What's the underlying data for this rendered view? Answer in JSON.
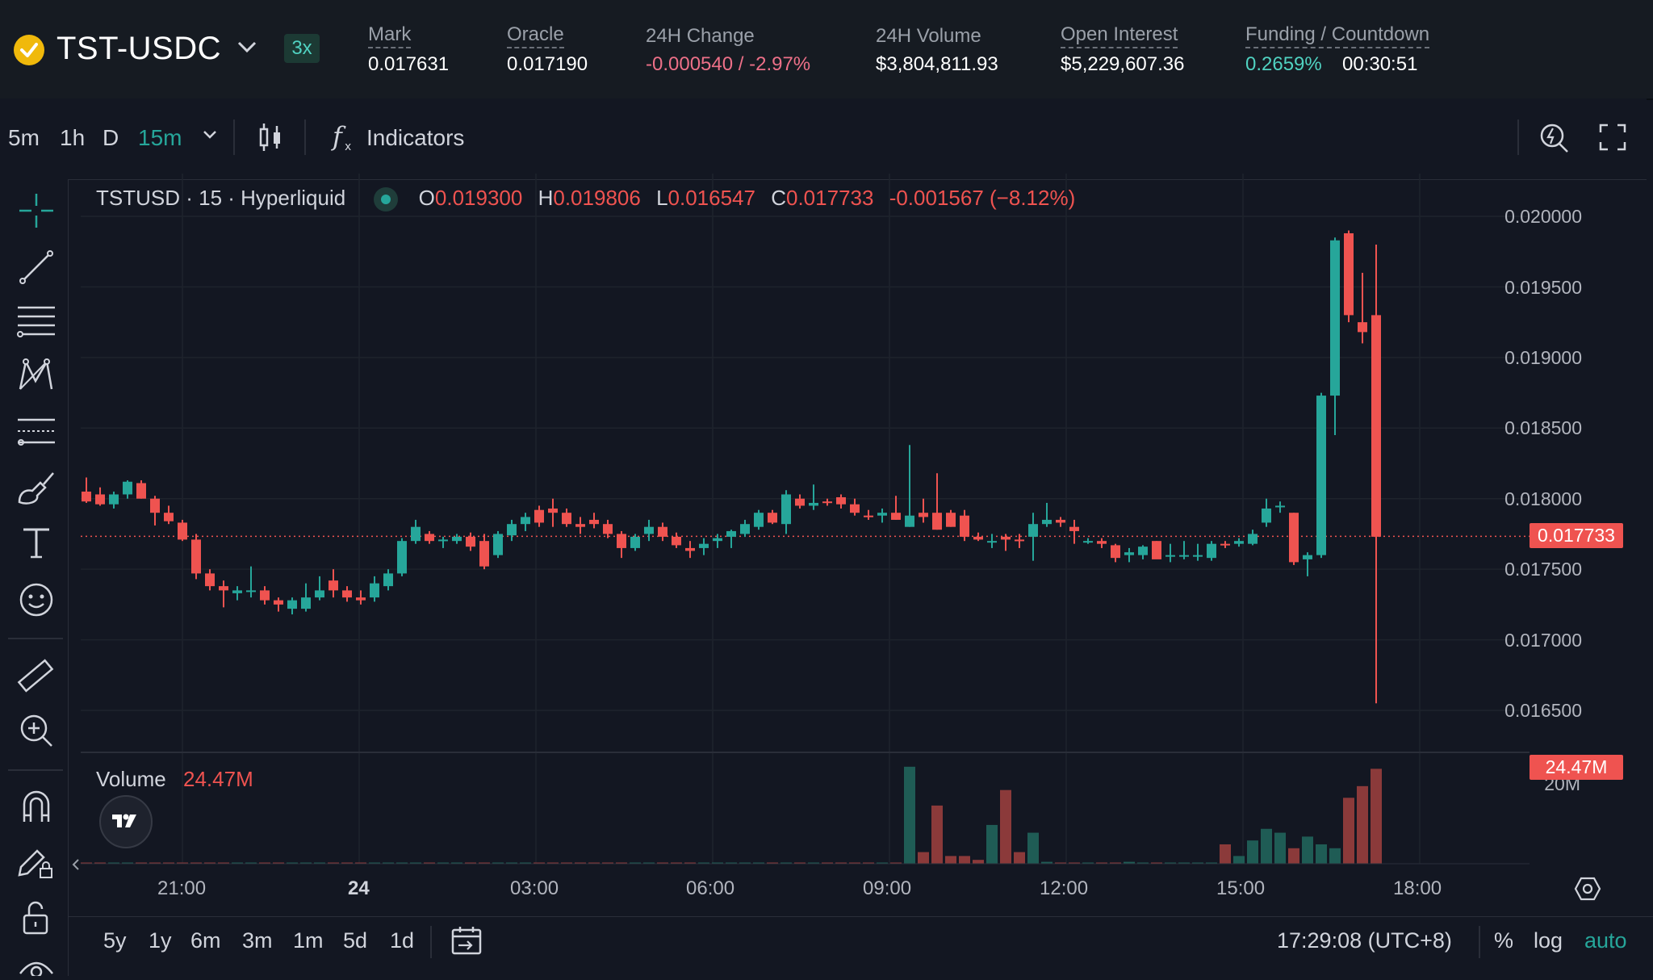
{
  "header": {
    "symbol": "TST-USDC",
    "leverage": "3x",
    "stats": {
      "mark": {
        "label": "Mark",
        "value": "0.017631"
      },
      "oracle": {
        "label": "Oracle",
        "value": "0.017190"
      },
      "change": {
        "label": "24H Change",
        "value": "-0.000540 / -2.97%"
      },
      "volume": {
        "label": "24H Volume",
        "value": "$3,804,811.93"
      },
      "open_interest": {
        "label": "Open Interest",
        "value": "$5,229,607.36"
      },
      "funding": {
        "label": "Funding / Countdown",
        "rate": "0.2659%",
        "countdown": "00:30:51"
      }
    }
  },
  "toolbar": {
    "timeframes": [
      "5m",
      "1h",
      "D"
    ],
    "active_timeframe": "15m",
    "indicators_label": "Indicators"
  },
  "legend": {
    "title": "TSTUSD · 15 · Hyperliquid",
    "o_label": "O",
    "o": "0.019300",
    "h_label": "H",
    "h": "0.019806",
    "l_label": "L",
    "l": "0.016547",
    "c_label": "C",
    "c": "0.017733",
    "change": "-0.001567 (−8.12%)"
  },
  "volume_legend": {
    "label": "Volume",
    "value": "24.47M"
  },
  "price_axis": [
    "0.020000",
    "0.019500",
    "0.019000",
    "0.018500",
    "0.018000",
    "0.017500",
    "0.017000",
    "0.016500"
  ],
  "volume_axis": [
    "20M"
  ],
  "last_price_tag": "0.017733",
  "volume_tag": "24.47M",
  "time_axis": [
    "21:00",
    "24",
    "03:00",
    "06:00",
    "09:00",
    "12:00",
    "15:00",
    "18:00"
  ],
  "bottom": {
    "ranges": [
      "5y",
      "1y",
      "6m",
      "3m",
      "1m",
      "5d",
      "1d"
    ],
    "clock": "17:29:08 (UTC+8)",
    "percent": "%",
    "log": "log",
    "auto": "auto"
  },
  "colors": {
    "up": "#26a69a",
    "down": "#ef5350",
    "background": "#131722",
    "accent": "#50d2c1"
  },
  "icons": {
    "rail": [
      "crosshair-icon",
      "trend-line-icon",
      "fib-lines-icon",
      "pattern-icon",
      "prediction-icon",
      "brush-icon",
      "text-icon",
      "emoji-icon",
      "ruler-icon",
      "zoom-in-icon",
      "magnet-icon",
      "lock-drawing-icon",
      "unlock-icon"
    ],
    "toolbar": [
      "candle-type-icon",
      "indicators-icon",
      "snapshot-icon",
      "fullscreen-icon"
    ]
  },
  "chart_data": {
    "type": "candlestick",
    "title": "TSTUSD · 15 · Hyperliquid",
    "x_ticks": [
      "21:00",
      "24",
      "03:00",
      "06:00",
      "09:00",
      "12:00",
      "15:00",
      "18:00"
    ],
    "ylim": [
      0.0163,
      0.0202
    ],
    "y_ticks": [
      0.0165,
      0.017,
      0.0175,
      0.018,
      0.0185,
      0.019,
      0.0195,
      0.02
    ],
    "last_price": 0.017733,
    "grid": true,
    "candles": [
      [
        0.01805,
        0.01815,
        0.01797,
        0.01798
      ],
      [
        0.01803,
        0.01808,
        0.01795,
        0.01796
      ],
      [
        0.01796,
        0.01805,
        0.01793,
        0.01803
      ],
      [
        0.01803,
        0.01813,
        0.018,
        0.01812
      ],
      [
        0.01811,
        0.01813,
        0.018,
        0.018
      ],
      [
        0.018,
        0.01802,
        0.01781,
        0.0179
      ],
      [
        0.0179,
        0.01795,
        0.01782,
        0.01784
      ],
      [
        0.01783,
        0.01785,
        0.0177,
        0.01771
      ],
      [
        0.01771,
        0.01775,
        0.01743,
        0.01747
      ],
      [
        0.01747,
        0.0175,
        0.01735,
        0.01738
      ],
      [
        0.01738,
        0.01742,
        0.01723,
        0.01735
      ],
      [
        0.01733,
        0.01738,
        0.01728,
        0.01735
      ],
      [
        0.01735,
        0.01752,
        0.0173,
        0.01735
      ],
      [
        0.01735,
        0.01738,
        0.01725,
        0.01728
      ],
      [
        0.01728,
        0.0173,
        0.0172,
        0.01725
      ],
      [
        0.01722,
        0.0173,
        0.01718,
        0.01728
      ],
      [
        0.01722,
        0.0174,
        0.0172,
        0.0173
      ],
      [
        0.0173,
        0.01745,
        0.01728,
        0.01735
      ],
      [
        0.01742,
        0.0175,
        0.0173,
        0.01735
      ],
      [
        0.01735,
        0.01738,
        0.01727,
        0.0173
      ],
      [
        0.0173,
        0.01735,
        0.01725,
        0.01728
      ],
      [
        0.0173,
        0.01745,
        0.01727,
        0.0174
      ],
      [
        0.01738,
        0.0175,
        0.01735,
        0.01747
      ],
      [
        0.01747,
        0.01772,
        0.01745,
        0.0177
      ],
      [
        0.0177,
        0.01785,
        0.01768,
        0.0178
      ],
      [
        0.01775,
        0.01777,
        0.01768,
        0.0177
      ],
      [
        0.0177,
        0.01773,
        0.01765,
        0.01771
      ],
      [
        0.0177,
        0.01775,
        0.01768,
        0.01773
      ],
      [
        0.01773,
        0.01776,
        0.01763,
        0.01766
      ],
      [
        0.0177,
        0.01775,
        0.0175,
        0.01752
      ],
      [
        0.0176,
        0.01777,
        0.01758,
        0.01775
      ],
      [
        0.01774,
        0.01785,
        0.0177,
        0.01782
      ],
      [
        0.01782,
        0.0179,
        0.01777,
        0.01787
      ],
      [
        0.01792,
        0.01795,
        0.0178,
        0.01783
      ],
      [
        0.01793,
        0.018,
        0.0178,
        0.0179
      ],
      [
        0.0179,
        0.01793,
        0.0178,
        0.01782
      ],
      [
        0.01782,
        0.01787,
        0.01775,
        0.0178
      ],
      [
        0.01785,
        0.0179,
        0.01779,
        0.01782
      ],
      [
        0.01782,
        0.01785,
        0.01772,
        0.01775
      ],
      [
        0.01775,
        0.01777,
        0.01758,
        0.01765
      ],
      [
        0.01765,
        0.01775,
        0.01763,
        0.01773
      ],
      [
        0.01775,
        0.01785,
        0.0177,
        0.0178
      ],
      [
        0.0178,
        0.01783,
        0.0177,
        0.01773
      ],
      [
        0.01773,
        0.01776,
        0.01765,
        0.01767
      ],
      [
        0.01765,
        0.0177,
        0.01758,
        0.01763
      ],
      [
        0.01765,
        0.01772,
        0.0176,
        0.01768
      ],
      [
        0.0177,
        0.01775,
        0.01765,
        0.01772
      ],
      [
        0.01773,
        0.01778,
        0.01765,
        0.01777
      ],
      [
        0.01775,
        0.01785,
        0.01773,
        0.01782
      ],
      [
        0.0178,
        0.01792,
        0.01778,
        0.0179
      ],
      [
        0.0179,
        0.01792,
        0.01782,
        0.01783
      ],
      [
        0.01782,
        0.01806,
        0.01775,
        0.01803
      ],
      [
        0.018,
        0.01803,
        0.01793,
        0.01795
      ],
      [
        0.01795,
        0.0181,
        0.01792,
        0.01797
      ],
      [
        0.01798,
        0.018,
        0.01795,
        0.01797
      ],
      [
        0.01801,
        0.01803,
        0.01793,
        0.01796
      ],
      [
        0.01796,
        0.018,
        0.01788,
        0.0179
      ],
      [
        0.01788,
        0.01792,
        0.01785,
        0.01787
      ],
      [
        0.01788,
        0.01793,
        0.01783,
        0.0179
      ],
      [
        0.0179,
        0.01802,
        0.01785,
        0.01785
      ],
      [
        0.0178,
        0.01838,
        0.0178,
        0.01788
      ],
      [
        0.0179,
        0.018,
        0.01783,
        0.01787
      ],
      [
        0.0179,
        0.01818,
        0.01778,
        0.01778
      ],
      [
        0.0179,
        0.01792,
        0.0178,
        0.0178
      ],
      [
        0.01788,
        0.01792,
        0.0177,
        0.01773
      ],
      [
        0.01773,
        0.01776,
        0.0177,
        0.01771
      ],
      [
        0.0177,
        0.01775,
        0.01765,
        0.0177
      ],
      [
        0.01773,
        0.01775,
        0.01763,
        0.01771
      ],
      [
        0.01771,
        0.01775,
        0.01765,
        0.0177
      ],
      [
        0.01773,
        0.0179,
        0.01756,
        0.01782
      ],
      [
        0.01782,
        0.01797,
        0.0178,
        0.01785
      ],
      [
        0.01785,
        0.01787,
        0.0178,
        0.01783
      ],
      [
        0.0178,
        0.01785,
        0.01768,
        0.01777
      ],
      [
        0.0177,
        0.01772,
        0.01768,
        0.0177
      ],
      [
        0.0177,
        0.01772,
        0.01765,
        0.01768
      ],
      [
        0.01767,
        0.01768,
        0.01755,
        0.01758
      ],
      [
        0.0176,
        0.01765,
        0.01755,
        0.01762
      ],
      [
        0.0176,
        0.01767,
        0.01757,
        0.01766
      ],
      [
        0.0177,
        0.0177,
        0.01758,
        0.01757
      ],
      [
        0.0176,
        0.01768,
        0.01755,
        0.0176
      ],
      [
        0.0176,
        0.0177,
        0.01757,
        0.0176
      ],
      [
        0.0176,
        0.01768,
        0.01756,
        0.0176
      ],
      [
        0.01758,
        0.0177,
        0.01756,
        0.01768
      ],
      [
        0.01768,
        0.0177,
        0.01765,
        0.01767
      ],
      [
        0.01768,
        0.01772,
        0.01766,
        0.0177
      ],
      [
        0.01768,
        0.01778,
        0.01767,
        0.01775
      ],
      [
        0.01783,
        0.018,
        0.0178,
        0.01793
      ],
      [
        0.01795,
        0.01798,
        0.0179,
        0.01795
      ],
      [
        0.0179,
        0.0179,
        0.01753,
        0.01755
      ],
      [
        0.01757,
        0.01762,
        0.01745,
        0.0176
      ],
      [
        0.0176,
        0.01875,
        0.01758,
        0.01873
      ],
      [
        0.01873,
        0.01985,
        0.01845,
        0.01983
      ],
      [
        0.01988,
        0.0199,
        0.01925,
        0.0193
      ],
      [
        0.01925,
        0.0196,
        0.0191,
        0.01918
      ],
      [
        0.0193,
        0.0198,
        0.01655,
        0.01773
      ]
    ],
    "volume": [
      0.1,
      0.1,
      0.1,
      0.1,
      0.1,
      0.1,
      0.2,
      0.1,
      0.1,
      0.1,
      0.1,
      0.1,
      0.1,
      0.1,
      0.1,
      0.1,
      0.1,
      0.1,
      0.1,
      0.1,
      0.1,
      0.1,
      0.1,
      0.1,
      0.1,
      0.1,
      0.1,
      0.1,
      0.1,
      0.1,
      0.1,
      0.1,
      0.1,
      0.1,
      0.1,
      0.1,
      0.1,
      0.1,
      0.1,
      0.1,
      0.1,
      0.1,
      0.1,
      0.1,
      0.1,
      0.1,
      0.1,
      0.1,
      0.1,
      0.1,
      0.1,
      0.1,
      0.1,
      0.1,
      0.1,
      0.1,
      0.1,
      0.1,
      0.1,
      0.1,
      25.0,
      3.0,
      15.0,
      2.0,
      2.0,
      1.0,
      10.0,
      19.0,
      3.0,
      8.0,
      0.5,
      0.3,
      0.3,
      0.3,
      0.2,
      0.2,
      0.5,
      0.3,
      0.2,
      0.2,
      0.2,
      0.2,
      0.3,
      5.0,
      2.0,
      6.0,
      9.0,
      8.0,
      4.0,
      7.0,
      5.0,
      4.0,
      17.0,
      20.0,
      24.47
    ]
  }
}
